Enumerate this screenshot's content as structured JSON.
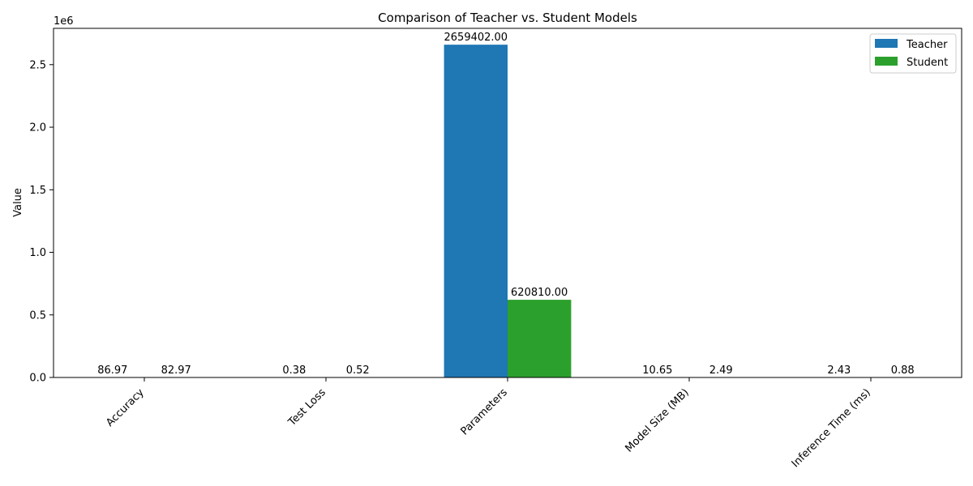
{
  "chart_data": {
    "type": "bar",
    "title": "Comparison of Teacher vs. Student Models",
    "xlabel": "",
    "ylabel": "Value",
    "y_scale_note": "1e6",
    "categories": [
      "Accuracy",
      "Test Loss",
      "Parameters",
      "Model Size (MB)",
      "Inference Time (ms)"
    ],
    "series": [
      {
        "name": "Teacher",
        "color": "#1f77b4",
        "values": [
          86.97,
          0.38,
          2659402.0,
          10.65,
          2.43
        ],
        "labels": [
          "86.97",
          "0.38",
          "2659402.00",
          "10.65",
          "2.43"
        ]
      },
      {
        "name": "Student",
        "color": "#2ca02c",
        "values": [
          82.97,
          0.52,
          620810.0,
          2.49,
          0.88
        ],
        "labels": [
          "82.97",
          "0.52",
          "620810.00",
          "2.49",
          "0.88"
        ]
      }
    ],
    "yticks": [
      "0.0",
      "0.5",
      "1.0",
      "1.5",
      "2.0",
      "2.5"
    ],
    "ylim": [
      0,
      2790000
    ],
    "legend_position": "top-right",
    "grid": false
  }
}
